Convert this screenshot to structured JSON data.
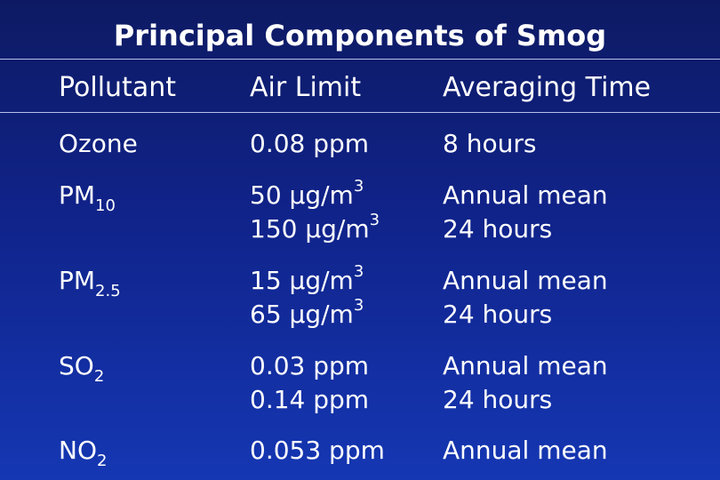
{
  "title": "Principal Components of Smog",
  "headers": {
    "pollutant": "Pollutant",
    "air_limit": "Air Limit",
    "averaging_time": "Averaging Time"
  },
  "rows": [
    {
      "pollutant": {
        "base": "Ozone",
        "sub": ""
      },
      "limits": [
        {
          "value": "0.08 ppm",
          "unit_sup": ""
        }
      ],
      "times": [
        "8 hours"
      ]
    },
    {
      "pollutant": {
        "base": "PM",
        "sub": "10"
      },
      "limits": [
        {
          "value": "50 µg/m",
          "unit_sup": "3"
        },
        {
          "value": "150 µg/m",
          "unit_sup": "3"
        }
      ],
      "times": [
        "Annual mean",
        "24 hours"
      ]
    },
    {
      "pollutant": {
        "base": "PM",
        "sub": "2.5"
      },
      "limits": [
        {
          "value": "15 µg/m",
          "unit_sup": "3"
        },
        {
          "value": "65 µg/m",
          "unit_sup": "3"
        }
      ],
      "times": [
        "Annual mean",
        "24 hours"
      ]
    },
    {
      "pollutant": {
        "base": "SO",
        "sub": "2"
      },
      "limits": [
        {
          "value": "0.03 ppm",
          "unit_sup": ""
        },
        {
          "value": "0.14 ppm",
          "unit_sup": ""
        }
      ],
      "times": [
        "Annual mean",
        "24 hours"
      ]
    },
    {
      "pollutant": {
        "base": "NO",
        "sub": "2"
      },
      "limits": [
        {
          "value": "0.053 ppm",
          "unit_sup": ""
        }
      ],
      "times": [
        "Annual mean"
      ]
    }
  ]
}
